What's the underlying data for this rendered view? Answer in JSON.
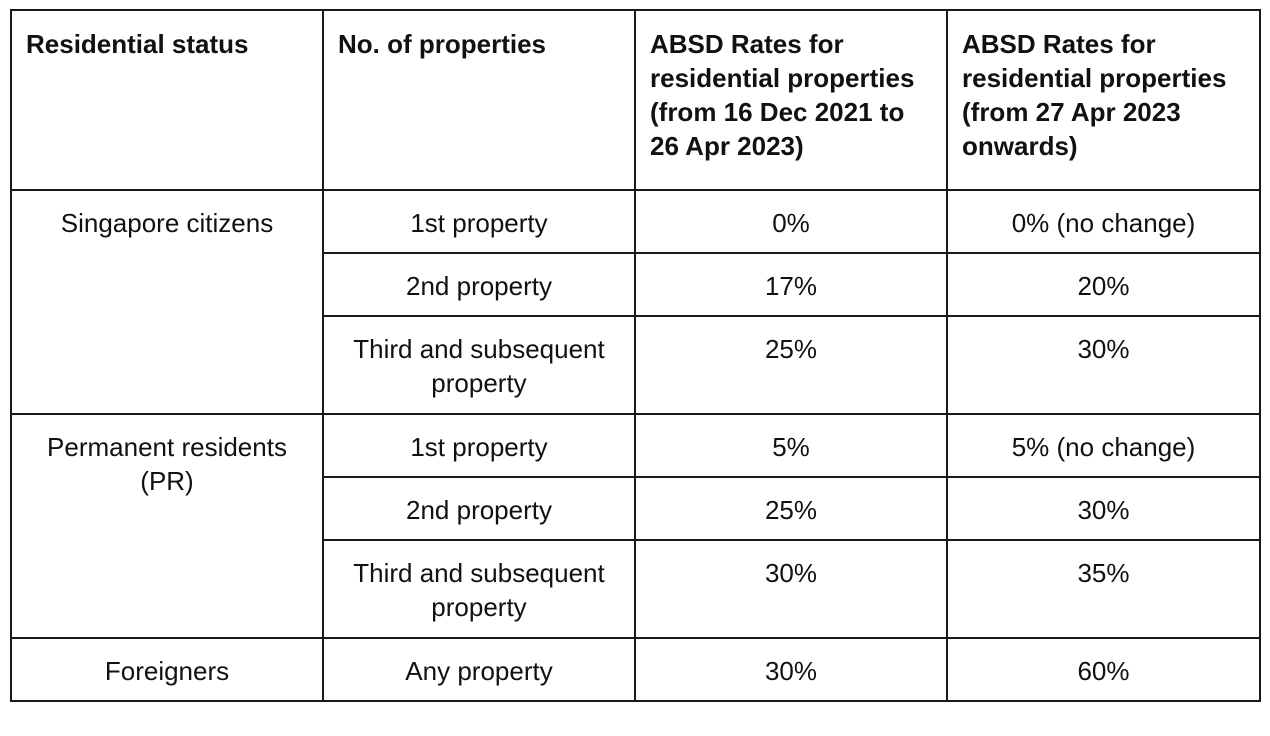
{
  "table": {
    "headers": [
      "Residential status",
      "No. of properties",
      "ABSD Rates for residential properties (from 16 Dec 2021 to 26 Apr 2023)",
      "ABSD Rates for residential properties (from 27 Apr 2023 onwards)"
    ],
    "groups": [
      {
        "status": "Singapore citizens",
        "rows": [
          {
            "properties": "1st property",
            "rate_old": "0%",
            "rate_new": "0% (no change)"
          },
          {
            "properties": "2nd property",
            "rate_old": "17%",
            "rate_new": "20%"
          },
          {
            "properties": "Third and subsequent property",
            "rate_old": "25%",
            "rate_new": "30%"
          }
        ]
      },
      {
        "status": "Permanent residents (PR)",
        "rows": [
          {
            "properties": "1st property",
            "rate_old": "5%",
            "rate_new": "5% (no change)"
          },
          {
            "properties": "2nd property",
            "rate_old": "25%",
            "rate_new": "30%"
          },
          {
            "properties": "Third and subsequent property",
            "rate_old": "30%",
            "rate_new": "35%"
          }
        ]
      },
      {
        "status": "Foreigners",
        "rows": [
          {
            "properties": "Any property",
            "rate_old": "30%",
            "rate_new": "60%"
          }
        ]
      }
    ]
  }
}
